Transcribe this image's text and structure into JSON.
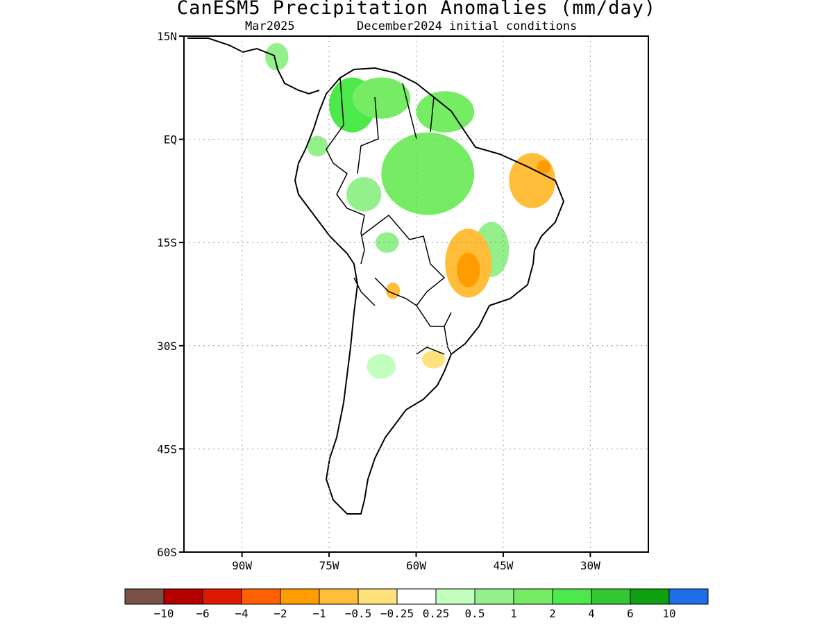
{
  "title": "CanESM5 Precipitation Anomalies (mm/day)",
  "subtitle_left": "Mar2025",
  "subtitle_right": "December2024 initial conditions",
  "map": {
    "lon_range": [
      -100,
      -20
    ],
    "lat_range": [
      -60,
      15
    ],
    "lat_ticks": [
      {
        "value": 15,
        "label": "15N"
      },
      {
        "value": 0,
        "label": "EQ"
      },
      {
        "value": -15,
        "label": "15S"
      },
      {
        "value": -30,
        "label": "30S"
      },
      {
        "value": -45,
        "label": "45S"
      },
      {
        "value": -60,
        "label": "60S"
      }
    ],
    "lon_ticks": [
      {
        "value": -90,
        "label": "90W"
      },
      {
        "value": -75,
        "label": "75W"
      },
      {
        "value": -60,
        "label": "60W"
      },
      {
        "value": -45,
        "label": "45W"
      },
      {
        "value": -30,
        "label": "30W"
      }
    ],
    "grid": "dotted"
  },
  "colorbar": {
    "colors": [
      "#7a5245",
      "#b50000",
      "#dd1a00",
      "#ff6100",
      "#ff9d00",
      "#ffbd3a",
      "#ffe27b",
      "#ffffff",
      "#c2ffbf",
      "#93f08a",
      "#76ec65",
      "#4de84a",
      "#33c733",
      "#0fa00f",
      "#1d6ee8"
    ],
    "labels": [
      "−10",
      "−6",
      "−4",
      "−2",
      "−1",
      "−0.5",
      "−0.25",
      "0.25",
      "0.5",
      "1",
      "2",
      "4",
      "6",
      "10"
    ]
  },
  "anomaly_regions": [
    {
      "name": "northwest-amazon-wet",
      "value": 2,
      "lon": -71,
      "lat": 5,
      "rx": 4,
      "ry": 4
    },
    {
      "name": "venezuela-wet",
      "value": 1,
      "lon": -66,
      "lat": 6,
      "rx": 5,
      "ry": 3
    },
    {
      "name": "amazon-basin-wet",
      "value": 1,
      "lon": -58,
      "lat": -5,
      "rx": 8,
      "ry": 6
    },
    {
      "name": "guiana-wet",
      "value": 1,
      "lon": -55,
      "lat": 4,
      "rx": 5,
      "ry": 3
    },
    {
      "name": "central-america-wet",
      "value": 0.5,
      "lon": -84,
      "lat": 12,
      "rx": 2,
      "ry": 2
    },
    {
      "name": "ecuador-wet",
      "value": 0.5,
      "lon": -77,
      "lat": -1,
      "rx": 1.8,
      "ry": 1.5
    },
    {
      "name": "west-amazon-wet",
      "value": 0.5,
      "lon": -69,
      "lat": -8,
      "rx": 3,
      "ry": 2.5
    },
    {
      "name": "bolivia-wet",
      "value": 0.5,
      "lon": -65,
      "lat": -15,
      "rx": 2,
      "ry": 1.5
    },
    {
      "name": "central-brazil-wet",
      "value": 0.5,
      "lon": -47,
      "lat": -16,
      "rx": 3,
      "ry": 4
    },
    {
      "name": "northeast-brazil-dry",
      "value": -1,
      "lon": -40,
      "lat": -6,
      "rx": 4,
      "ry": 4
    },
    {
      "name": "northeast-coast-dry",
      "value": -2,
      "lon": -38,
      "lat": -4,
      "rx": 1.2,
      "ry": 1
    },
    {
      "name": "central-brazil-dry",
      "value": -1,
      "lon": -51,
      "lat": -18,
      "rx": 4,
      "ry": 5
    },
    {
      "name": "central-brazil-core-dry",
      "value": -2,
      "lon": -51,
      "lat": -19,
      "rx": 2,
      "ry": 2.5
    },
    {
      "name": "paraguay-dry",
      "value": -1,
      "lon": -64,
      "lat": -22,
      "rx": 1.2,
      "ry": 1.2
    },
    {
      "name": "argentina-dry",
      "value": -0.25,
      "lon": -61,
      "lat": -28,
      "rx": 5,
      "ry": 2.5
    },
    {
      "name": "uruguay-dry",
      "value": -0.5,
      "lon": -57,
      "lat": -32,
      "rx": 2,
      "ry": 1.3
    },
    {
      "name": "pampas-wet",
      "value": 0.25,
      "lon": -66,
      "lat": -33,
      "rx": 2.5,
      "ry": 1.8
    },
    {
      "name": "patagonia-dry",
      "value": -0.25,
      "lon": -71,
      "lat": -50,
      "rx": 1.2,
      "ry": 3
    }
  ]
}
